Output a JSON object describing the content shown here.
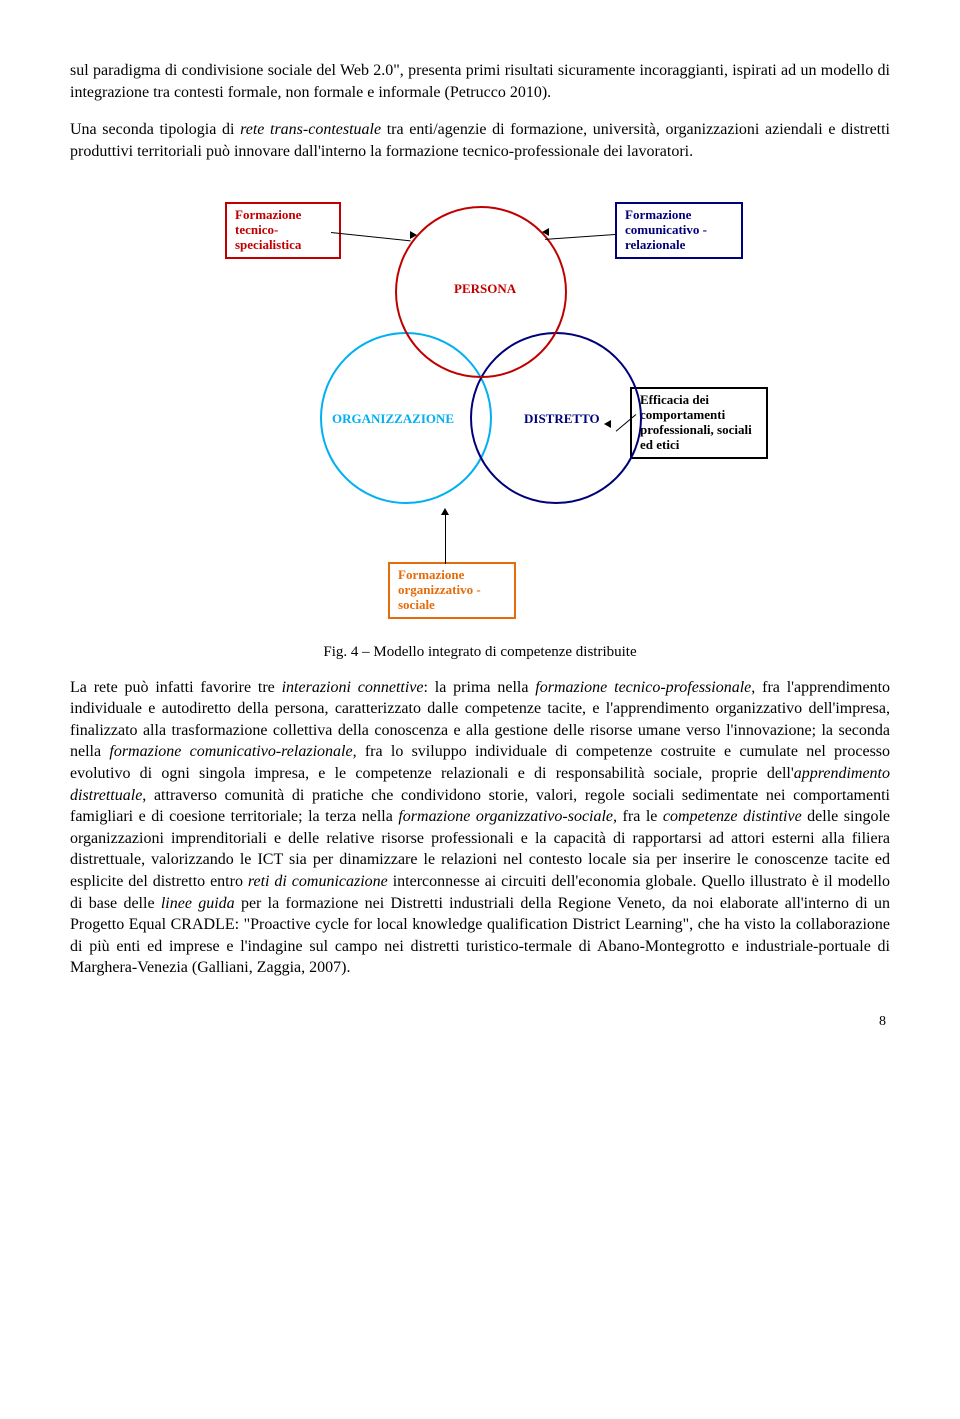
{
  "para1_parts": [
    {
      "t": "sul paradigma di condivisione sociale del Web 2.0\", presenta  primi risultati sicuramente incoraggianti, ispirati ad un modello di integrazione tra contesti formale, non formale e informale (Petrucco 2010).",
      "i": false
    }
  ],
  "para2_parts": [
    {
      "t": "Una seconda tipologia di  ",
      "i": false
    },
    {
      "t": "rete trans-contestuale",
      "i": true
    },
    {
      "t": " tra enti/agenzie di formazione, università, organizzazioni aziendali e distretti produttivi territoriali può innovare dall'interno la formazione tecnico-professionale dei lavoratori.",
      "i": false
    }
  ],
  "diagram": {
    "box_left": "Formazione tecnico-specialistica",
    "box_right": "Formazione comunicativo -relazionale",
    "box_eff": "Efficacia dei comportamenti professionali, sociali ed etici",
    "box_bottom": "Formazione organizzativo -sociale",
    "lbl_persona": "PERSONA",
    "lbl_org": "ORGANIZZAZIONE",
    "lbl_dist": "DISTRETTO",
    "colors": {
      "red": "#c00000",
      "blue": "#00007a",
      "cyan": "#00b0f0",
      "orange": "#e46c0a",
      "black": "#000000"
    }
  },
  "figure_caption": "Fig. 4 – Modello integrato di competenze distribuite",
  "para3_parts": [
    {
      "t": "La rete può infatti favorire tre ",
      "i": false
    },
    {
      "t": "interazioni connettive",
      "i": true
    },
    {
      "t": ": la prima nella ",
      "i": false
    },
    {
      "t": "formazione tecnico-professionale",
      "i": true
    },
    {
      "t": ",  fra l'apprendimento individuale e autodiretto della persona, caratterizzato dalle competenze tacite, e l'apprendimento organizzativo dell'impresa, finalizzato alla trasformazione collettiva della conoscenza e alla  gestione delle risorse umane verso l'innovazione; la seconda nella ",
      "i": false
    },
    {
      "t": "formazione comunicativo-relazionale,",
      "i": true
    },
    {
      "t": " fra lo sviluppo individuale di competenze costruite e cumulate nel processo evolutivo di ogni singola impresa, e le competenze relazionali e di responsabilità sociale, proprie dell'",
      "i": false
    },
    {
      "t": "apprendimento distrettuale",
      "i": true
    },
    {
      "t": ", attraverso comunità di pratiche che condividono storie, valori, regole  sociali sedimentate nei comportamenti famigliari e di coesione territoriale; la terza nella ",
      "i": false
    },
    {
      "t": "formazione organizzativo-sociale,",
      "i": true
    },
    {
      "t": " fra le ",
      "i": false
    },
    {
      "t": "competenze distintive",
      "i": true
    },
    {
      "t": " delle singole organizzazioni imprenditoriali e delle relative risorse professionali e la capacità di rapportarsi ad attori esterni alla filiera distrettuale, valorizzando le ICT sia per dinamizzare le relazioni nel contesto locale sia per inserire le conoscenze tacite ed esplicite del distretto entro ",
      "i": false
    },
    {
      "t": "reti di comunicazione",
      "i": true
    },
    {
      "t": " interconnesse ai circuiti dell'economia globale. Quello illustrato è il modello di base delle ",
      "i": false
    },
    {
      "t": "linee guida",
      "i": true
    },
    {
      "t": " per la formazione nei Distretti industriali della Regione Veneto, da noi elaborate all'interno di un Progetto Equal CRADLE: \"Proactive cycle for local knowledge qualification District Learning\", che ha visto la collaborazione di più enti ed imprese e l'indagine sul campo nei distretti turistico-termale di Abano-Montegrotto e industriale-portuale di Marghera-Venezia (Galliani, Zaggia, 2007).",
      "i": false
    }
  ],
  "page_number": "8"
}
